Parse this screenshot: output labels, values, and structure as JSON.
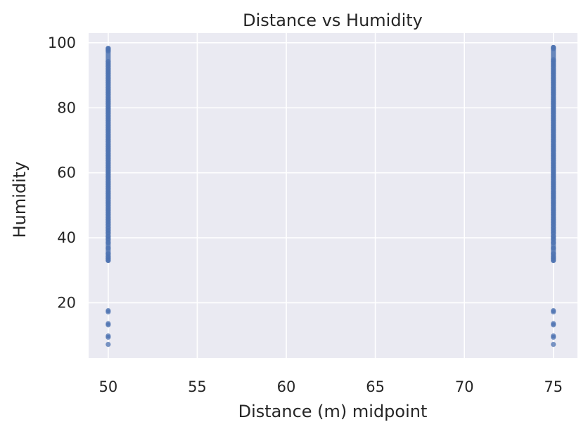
{
  "chart_data": {
    "type": "scatter",
    "title": "Distance vs Humidity",
    "xlabel": "Distance (m) midpoint",
    "ylabel": "Humidity",
    "xlim": [
      48.9,
      76.35
    ],
    "ylim": [
      3.0,
      103.0
    ],
    "xticks": [
      50,
      55,
      60,
      65,
      70,
      75
    ],
    "yticks": [
      20,
      40,
      60,
      80,
      100
    ],
    "grid": true,
    "legend": "none",
    "colors": {
      "background": "#eaeaf2",
      "grid": "#ffffff",
      "point": "#4c72b0"
    },
    "series": [
      {
        "x": 50,
        "y": [
          7.2,
          9.4,
          9.8,
          13.2,
          13.6,
          17.2,
          17.6,
          33.0,
          33.6,
          34.2,
          35.1,
          36.8,
          38.5,
          39.6,
          40.4,
          41.5,
          42.3,
          43.1,
          44.0,
          44.8,
          45.6,
          46.3,
          47.1,
          47.8,
          48.5,
          49.2,
          50.0,
          50.7,
          51.4,
          52.2,
          52.9,
          53.6,
          54.3,
          55.1,
          55.8,
          56.5,
          57.2,
          58.0,
          58.7,
          59.4,
          60.1,
          60.9,
          61.6,
          62.3,
          63.0,
          63.8,
          64.5,
          65.2,
          65.9,
          66.7,
          67.4,
          68.1,
          68.8,
          69.6,
          70.3,
          71.0,
          71.7,
          72.5,
          73.2,
          73.9,
          74.6,
          75.4,
          76.1,
          76.8,
          77.5,
          78.3,
          79.0,
          79.7,
          80.4,
          81.2,
          81.9,
          82.6,
          83.3,
          84.1,
          84.8,
          85.5,
          86.2,
          87.0,
          87.7,
          88.4,
          89.1,
          89.9,
          90.6,
          91.3,
          92.0,
          92.8,
          93.5,
          94.2,
          97.5,
          97.9,
          98.3
        ]
      },
      {
        "x": 75,
        "y": [
          7.2,
          9.4,
          9.8,
          13.2,
          13.6,
          17.2,
          17.6,
          33.0,
          33.6,
          34.2,
          35.1,
          36.8,
          38.5,
          39.6,
          40.4,
          41.5,
          42.3,
          43.1,
          44.0,
          44.8,
          45.6,
          46.3,
          47.1,
          47.8,
          48.5,
          49.2,
          50.0,
          50.7,
          51.4,
          52.2,
          52.9,
          53.6,
          54.3,
          55.1,
          55.8,
          56.5,
          57.2,
          58.0,
          58.7,
          59.4,
          60.1,
          60.9,
          61.6,
          62.3,
          63.0,
          63.8,
          64.5,
          65.2,
          65.9,
          66.7,
          67.4,
          68.1,
          68.8,
          69.6,
          70.3,
          71.0,
          71.7,
          72.5,
          73.2,
          73.9,
          74.6,
          75.4,
          76.1,
          76.8,
          77.5,
          78.3,
          79.0,
          79.7,
          80.4,
          81.2,
          81.9,
          82.6,
          83.3,
          84.1,
          84.8,
          85.5,
          86.2,
          87.0,
          87.7,
          88.4,
          89.1,
          89.9,
          90.6,
          91.3,
          92.0,
          92.8,
          93.5,
          94.2,
          94.8,
          98.2,
          98.6
        ]
      }
    ]
  }
}
